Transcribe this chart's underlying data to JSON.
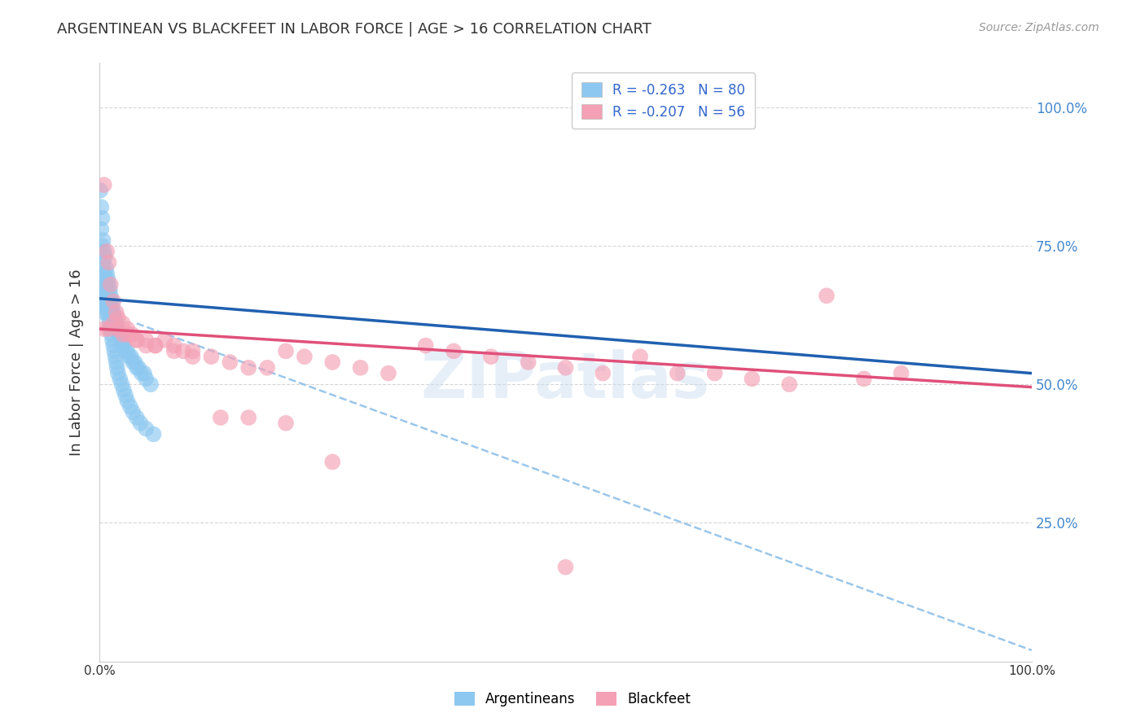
{
  "title": "ARGENTINEAN VS BLACKFEET IN LABOR FORCE | AGE > 16 CORRELATION CHART",
  "source": "Source: ZipAtlas.com",
  "ylabel": "In Labor Force | Age > 16",
  "xlim": [
    0.0,
    1.0
  ],
  "ylim": [
    0.0,
    1.08
  ],
  "yticks": [
    0.25,
    0.5,
    0.75,
    1.0
  ],
  "ytick_labels": [
    "25.0%",
    "50.0%",
    "75.0%",
    "100.0%"
  ],
  "xticks": [
    0.0,
    0.1,
    0.2,
    0.3,
    0.4,
    0.5,
    0.6,
    0.7,
    0.8,
    0.9,
    1.0
  ],
  "xtick_labels": [
    "0.0%",
    "",
    "",
    "",
    "",
    "",
    "",
    "",
    "",
    "",
    "100.0%"
  ],
  "legend_r1": "-0.263",
  "legend_n1": "80",
  "legend_r2": "-0.207",
  "legend_n2": "56",
  "argentinean_color": "#8DC8F0",
  "blackfeet_color": "#F4A0B5",
  "trendline_arg_color": "#2060B0",
  "trendline_bf_color": "#E0507A",
  "trendline_dashed_color": "#90C0E8",
  "background_color": "#ffffff",
  "watermark": "ZIPatlas",
  "arg_trend_x": [
    0.0,
    1.0
  ],
  "arg_trend_y": [
    0.655,
    0.52
  ],
  "bf_trend_x": [
    0.0,
    1.0
  ],
  "bf_trend_y": [
    0.6,
    0.495
  ],
  "dashed_trend_x": [
    0.04,
    1.0
  ],
  "dashed_trend_y": [
    0.61,
    0.02
  ],
  "argentineans_x": [
    0.001,
    0.002,
    0.002,
    0.003,
    0.003,
    0.004,
    0.004,
    0.005,
    0.005,
    0.006,
    0.006,
    0.007,
    0.007,
    0.008,
    0.008,
    0.009,
    0.009,
    0.01,
    0.01,
    0.011,
    0.011,
    0.012,
    0.012,
    0.013,
    0.014,
    0.015,
    0.015,
    0.016,
    0.017,
    0.018,
    0.019,
    0.02,
    0.021,
    0.022,
    0.023,
    0.024,
    0.025,
    0.026,
    0.028,
    0.03,
    0.032,
    0.034,
    0.036,
    0.038,
    0.04,
    0.042,
    0.045,
    0.048,
    0.05,
    0.055,
    0.002,
    0.003,
    0.004,
    0.005,
    0.006,
    0.007,
    0.008,
    0.009,
    0.01,
    0.011,
    0.012,
    0.013,
    0.014,
    0.015,
    0.016,
    0.017,
    0.018,
    0.019,
    0.02,
    0.022,
    0.024,
    0.026,
    0.028,
    0.03,
    0.033,
    0.036,
    0.04,
    0.044,
    0.05,
    0.058
  ],
  "argentineans_y": [
    0.85,
    0.82,
    0.78,
    0.8,
    0.75,
    0.76,
    0.72,
    0.74,
    0.7,
    0.73,
    0.69,
    0.71,
    0.68,
    0.7,
    0.67,
    0.69,
    0.66,
    0.68,
    0.65,
    0.67,
    0.64,
    0.66,
    0.63,
    0.65,
    0.64,
    0.63,
    0.62,
    0.62,
    0.61,
    0.61,
    0.6,
    0.6,
    0.59,
    0.59,
    0.58,
    0.58,
    0.57,
    0.57,
    0.56,
    0.56,
    0.55,
    0.55,
    0.54,
    0.54,
    0.53,
    0.53,
    0.52,
    0.52,
    0.51,
    0.5,
    0.66,
    0.65,
    0.64,
    0.63,
    0.67,
    0.65,
    0.64,
    0.63,
    0.62,
    0.61,
    0.6,
    0.59,
    0.58,
    0.57,
    0.56,
    0.55,
    0.54,
    0.53,
    0.52,
    0.51,
    0.5,
    0.49,
    0.48,
    0.47,
    0.46,
    0.45,
    0.44,
    0.43,
    0.42,
    0.41
  ],
  "blackfeet_x": [
    0.005,
    0.008,
    0.01,
    0.012,
    0.015,
    0.018,
    0.02,
    0.025,
    0.03,
    0.035,
    0.04,
    0.05,
    0.06,
    0.07,
    0.08,
    0.09,
    0.1,
    0.12,
    0.14,
    0.16,
    0.18,
    0.2,
    0.22,
    0.25,
    0.28,
    0.31,
    0.35,
    0.38,
    0.42,
    0.46,
    0.5,
    0.54,
    0.58,
    0.62,
    0.66,
    0.7,
    0.74,
    0.78,
    0.82,
    0.86,
    0.005,
    0.01,
    0.015,
    0.02,
    0.025,
    0.03,
    0.04,
    0.05,
    0.06,
    0.08,
    0.1,
    0.13,
    0.16,
    0.2,
    0.25,
    0.5
  ],
  "blackfeet_y": [
    0.86,
    0.74,
    0.72,
    0.68,
    0.65,
    0.63,
    0.62,
    0.61,
    0.6,
    0.59,
    0.58,
    0.57,
    0.57,
    0.58,
    0.57,
    0.56,
    0.56,
    0.55,
    0.54,
    0.53,
    0.53,
    0.56,
    0.55,
    0.54,
    0.53,
    0.52,
    0.57,
    0.56,
    0.55,
    0.54,
    0.53,
    0.52,
    0.55,
    0.52,
    0.52,
    0.51,
    0.5,
    0.66,
    0.51,
    0.52,
    0.6,
    0.6,
    0.61,
    0.6,
    0.59,
    0.59,
    0.58,
    0.58,
    0.57,
    0.56,
    0.55,
    0.44,
    0.44,
    0.43,
    0.36,
    0.17
  ]
}
